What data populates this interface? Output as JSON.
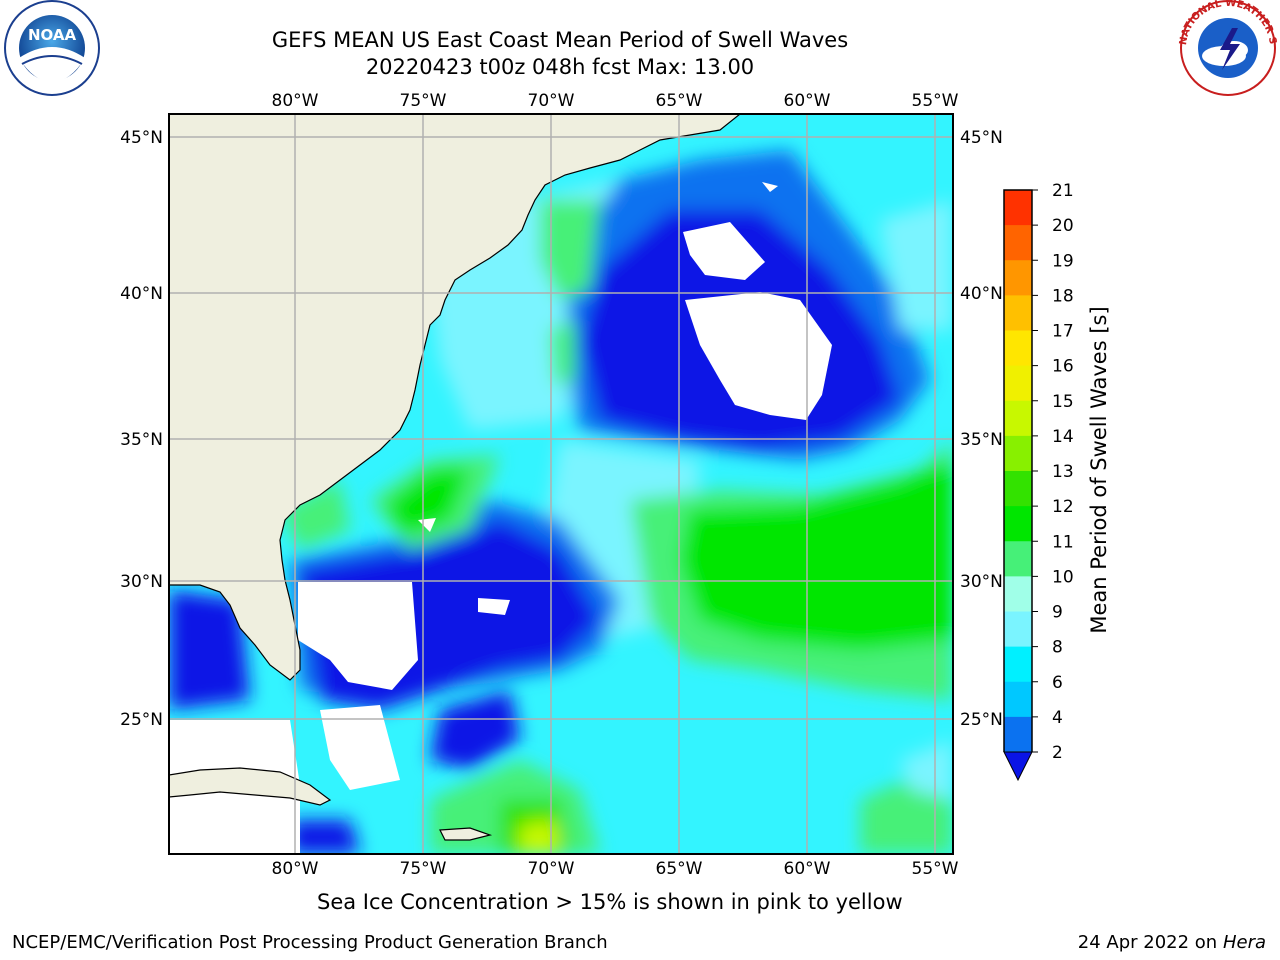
{
  "title": {
    "line1": "GEFS MEAN US East Coast Mean Period of Swell Waves",
    "line2": "20220423 t00z 048h fcst   Max: 13.00"
  },
  "map": {
    "lon_ticks": [
      "80°W",
      "75°W",
      "70°W",
      "65°W",
      "60°W",
      "55°W"
    ],
    "lat_ticks": [
      "45°N",
      "40°N",
      "35°N",
      "30°N",
      "25°N"
    ],
    "gridlines": true
  },
  "colorbar": {
    "label": "Mean Period of Swell Waves [s]",
    "ticks": [
      "2",
      "4",
      "6",
      "8",
      "9",
      "10",
      "11",
      "12",
      "13",
      "14",
      "15",
      "16",
      "17",
      "18",
      "19",
      "20",
      "21"
    ],
    "colors": [
      "#0b72f0",
      "#00c8ff",
      "#00f0ff",
      "#7af4ff",
      "#a0ffe8",
      "#46f078",
      "#00e600",
      "#33e200",
      "#88f000",
      "#c8f800",
      "#f0f000",
      "#ffe600",
      "#ffc000",
      "#ff9600",
      "#ff6400",
      "#ff3200"
    ],
    "under_color": "#0a14e6"
  },
  "note": "Sea Ice Concentration > 15% is shown in pink to yellow",
  "footer": {
    "left": "NCEP/EMC/Verification Post Processing Product Generation Branch",
    "right_prefix": "24 Apr 2022 on ",
    "right_host": "Hera"
  },
  "logos": {
    "left": "NOAA",
    "right": "NATIONAL WEATHER SERVICE"
  }
}
